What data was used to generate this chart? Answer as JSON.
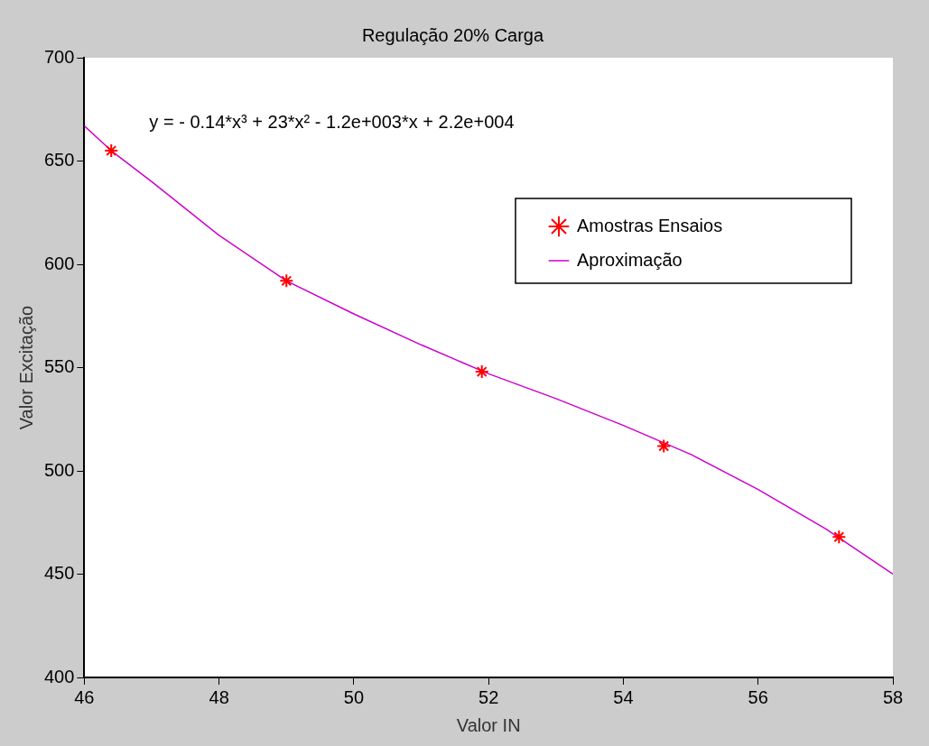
{
  "chart_data": {
    "type": "scatter",
    "title": "Regulação 20% Carga",
    "xlabel": "Valor IN",
    "ylabel": "Valor Excitação",
    "annotations": [
      "y = - 0.14*x³ + 23*x² - 1.2e+003*x + 2.2e+004"
    ],
    "xlim": [
      46,
      58
    ],
    "xticks": [
      46,
      48,
      50,
      52,
      54,
      56,
      58
    ],
    "ylim": [
      400,
      700
    ],
    "yticks": [
      400,
      450,
      500,
      550,
      600,
      650,
      700
    ],
    "grid": false,
    "legend": "top right",
    "series": [
      {
        "name": "Amostras Ensaios",
        "type": "scatter",
        "marker": "cross",
        "color": "#ff0000",
        "x": [
          46.4,
          49.0,
          51.9,
          54.6,
          57.2
        ],
        "values": [
          655,
          592,
          548,
          512,
          468
        ]
      },
      {
        "name": "Aproximação",
        "type": "line",
        "marker": "none",
        "line_style": "solid",
        "color": "#cc00cc",
        "x": [
          46,
          46.4,
          47,
          48,
          49,
          50,
          51,
          52,
          53,
          54,
          55,
          56,
          57,
          58
        ],
        "values": [
          667,
          655,
          640,
          614,
          592,
          576,
          561,
          547,
          535,
          522,
          508,
          491,
          472,
          450
        ]
      }
    ]
  }
}
